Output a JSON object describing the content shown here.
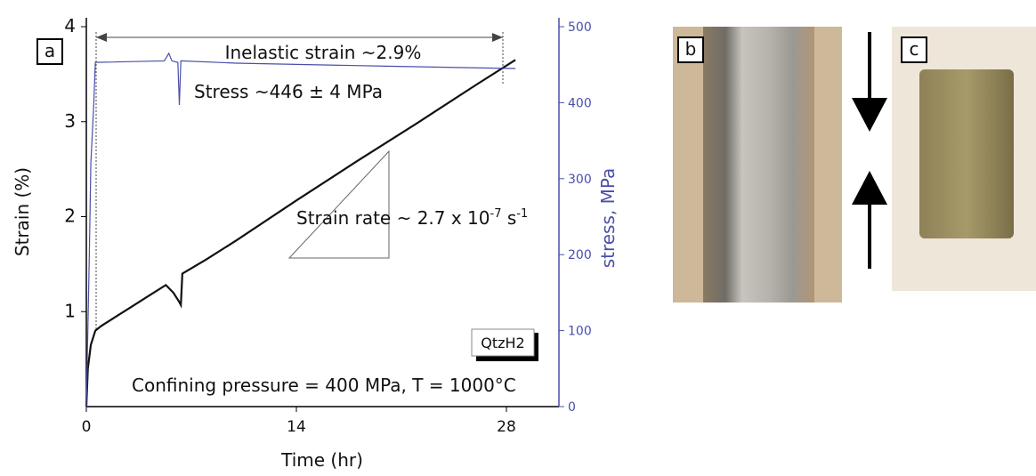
{
  "chart_data": {
    "type": "line",
    "x_label": "Time (hr)",
    "y_label": "Strain (%)",
    "y2_label": "stress, MPa",
    "xlim": [
      0,
      31.5
    ],
    "xticks": [
      0,
      14,
      28
    ],
    "ylim": [
      0,
      4
    ],
    "yticks": [
      1,
      2,
      3,
      4
    ],
    "y2lim": [
      0,
      500
    ],
    "y2ticks": [
      0,
      100,
      200,
      300,
      400,
      500
    ],
    "series": [
      {
        "name": "Strain",
        "color": "#111111",
        "x": [
          0,
          0.1,
          0.3,
          0.6,
          1,
          2,
          3,
          4,
          5.3,
          5.8,
          6.2,
          6.3,
          6.4,
          8,
          10,
          14,
          18,
          22,
          26,
          28.6
        ],
        "values": [
          0,
          0.4,
          0.65,
          0.8,
          0.85,
          0.95,
          1.05,
          1.15,
          1.28,
          1.2,
          1.1,
          1.07,
          1.4,
          1.55,
          1.75,
          2.17,
          2.58,
          2.98,
          3.39,
          3.65
        ]
      },
      {
        "name": "Stress",
        "color": "#4a4fa8",
        "axis": "y2",
        "x": [
          0,
          0.2,
          0.3,
          0.4,
          0.5,
          0.6,
          5.2,
          5.5,
          5.7,
          6.1,
          6.2,
          6.3,
          10,
          20,
          28.6
        ],
        "values": [
          0,
          200,
          320,
          360,
          400,
          453,
          455,
          465,
          455,
          453,
          397,
          455,
          452,
          448,
          445
        ]
      }
    ],
    "annotations": {
      "inelastic": "Inelastic strain ~2.9%",
      "stress": "Stress ~446 ± 4 MPa",
      "rate": {
        "text": "Strain rate ~ 2.7 x 10",
        "exp": "-7",
        "unit": " s",
        "unit_exp": "-1"
      },
      "sample": "QtzH2",
      "conditions": "Confining pressure = 400 MPa, T = 1000°C"
    }
  },
  "panels": [
    "a",
    "b",
    "c"
  ]
}
